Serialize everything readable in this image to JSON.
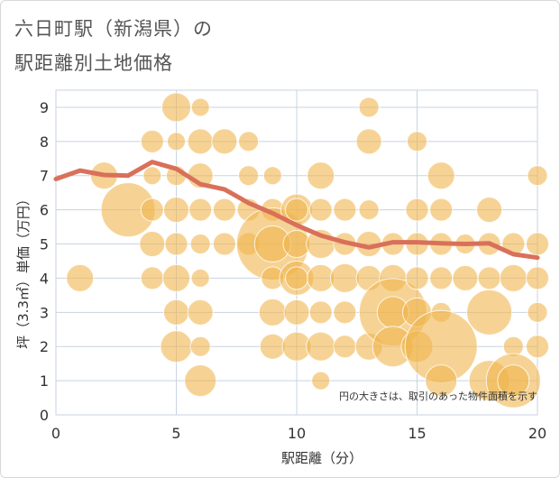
{
  "chart_data": {
    "type": "scatter",
    "title_line1": "六日町駅（新潟県）の",
    "title_line2": "駅距離別土地価格",
    "xlabel": "駅距離（分）",
    "ylabel": "坪（3.3㎡）単価（万円）",
    "xlim": [
      0,
      20
    ],
    "ylim": [
      0,
      9.5
    ],
    "x_ticks": [
      "0",
      "5",
      "10",
      "15",
      "20"
    ],
    "y_ticks": [
      "0",
      "1",
      "2",
      "3",
      "4",
      "5",
      "6",
      "7",
      "8",
      "9"
    ],
    "note": "円の大きさは、取引のあった物件面積を示す",
    "colors": {
      "bubble": "#f0b54e",
      "line": "#d9705a",
      "grid": "#c9d3e0"
    },
    "trend_line": {
      "x": [
        0,
        1,
        2,
        3,
        4,
        5,
        6,
        7,
        8,
        9,
        10,
        11,
        12,
        13,
        14,
        15,
        16,
        17,
        18,
        19,
        20
      ],
      "y": [
        6.9,
        7.15,
        7.02,
        7.0,
        7.4,
        7.2,
        6.75,
        6.6,
        6.2,
        5.9,
        5.55,
        5.25,
        5.05,
        4.9,
        5.05,
        5.05,
        5.02,
        5.0,
        5.02,
        4.7,
        4.6
      ]
    },
    "points": [
      {
        "x": 1,
        "y": 4,
        "s": 2
      },
      {
        "x": 2,
        "y": 7,
        "s": 2
      },
      {
        "x": 3,
        "y": 6,
        "s": 5
      },
      {
        "x": 4,
        "y": 8,
        "s": 1.5
      },
      {
        "x": 4,
        "y": 7,
        "s": 1
      },
      {
        "x": 4,
        "y": 6,
        "s": 1.5
      },
      {
        "x": 4,
        "y": 5,
        "s": 1.8
      },
      {
        "x": 4,
        "y": 4,
        "s": 1.5
      },
      {
        "x": 5,
        "y": 9,
        "s": 2.2
      },
      {
        "x": 5,
        "y": 8,
        "s": 1
      },
      {
        "x": 5,
        "y": 7,
        "s": 1.2
      },
      {
        "x": 5,
        "y": 6,
        "s": 1.8
      },
      {
        "x": 5,
        "y": 5,
        "s": 1.5
      },
      {
        "x": 5,
        "y": 4,
        "s": 2
      },
      {
        "x": 5,
        "y": 3,
        "s": 1.8
      },
      {
        "x": 5,
        "y": 2,
        "s": 2.5
      },
      {
        "x": 6,
        "y": 9,
        "s": 1
      },
      {
        "x": 6,
        "y": 8,
        "s": 1.8
      },
      {
        "x": 6,
        "y": 7,
        "s": 1.8
      },
      {
        "x": 6,
        "y": 6,
        "s": 1.5
      },
      {
        "x": 6,
        "y": 5,
        "s": 1.2
      },
      {
        "x": 6,
        "y": 4,
        "s": 1
      },
      {
        "x": 6,
        "y": 3,
        "s": 1.8
      },
      {
        "x": 6,
        "y": 2,
        "s": 1.2
      },
      {
        "x": 6,
        "y": 1,
        "s": 2.5
      },
      {
        "x": 7,
        "y": 8,
        "s": 1.8
      },
      {
        "x": 7,
        "y": 6,
        "s": 1.5
      },
      {
        "x": 7,
        "y": 5,
        "s": 1.5
      },
      {
        "x": 8,
        "y": 8,
        "s": 1.2
      },
      {
        "x": 8,
        "y": 7,
        "s": 1.2
      },
      {
        "x": 8,
        "y": 6,
        "s": 1.5
      },
      {
        "x": 8,
        "y": 5,
        "s": 1.5
      },
      {
        "x": 9,
        "y": 7,
        "s": 1
      },
      {
        "x": 9,
        "y": 6,
        "s": 1.5
      },
      {
        "x": 9,
        "y": 5,
        "s": 7
      },
      {
        "x": 9,
        "y": 5,
        "s": 3
      },
      {
        "x": 9,
        "y": 4,
        "s": 1.5
      },
      {
        "x": 9,
        "y": 3,
        "s": 2
      },
      {
        "x": 9,
        "y": 2,
        "s": 1.8
      },
      {
        "x": 10,
        "y": 6,
        "s": 2.5
      },
      {
        "x": 10,
        "y": 5,
        "s": 2
      },
      {
        "x": 10,
        "y": 4,
        "s": 2.8
      },
      {
        "x": 10,
        "y": 4,
        "s": 1.5
      },
      {
        "x": 10,
        "y": 3,
        "s": 1.8
      },
      {
        "x": 10,
        "y": 2,
        "s": 2.2
      },
      {
        "x": 10,
        "y": 6,
        "s": 1.5
      },
      {
        "x": 11,
        "y": 7,
        "s": 2
      },
      {
        "x": 11,
        "y": 6,
        "s": 1.5
      },
      {
        "x": 11,
        "y": 5,
        "s": 2.2
      },
      {
        "x": 11,
        "y": 4,
        "s": 2
      },
      {
        "x": 11,
        "y": 3,
        "s": 1.5
      },
      {
        "x": 11,
        "y": 2,
        "s": 2.2
      },
      {
        "x": 11,
        "y": 1,
        "s": 1
      },
      {
        "x": 12,
        "y": 6,
        "s": 1.5
      },
      {
        "x": 12,
        "y": 5,
        "s": 1.5
      },
      {
        "x": 12,
        "y": 4,
        "s": 2.2
      },
      {
        "x": 12,
        "y": 3,
        "s": 1.5
      },
      {
        "x": 12,
        "y": 2,
        "s": 1.5
      },
      {
        "x": 13,
        "y": 9,
        "s": 1.2
      },
      {
        "x": 13,
        "y": 8,
        "s": 1.8
      },
      {
        "x": 13,
        "y": 6,
        "s": 1.2
      },
      {
        "x": 13,
        "y": 5,
        "s": 1.8
      },
      {
        "x": 13,
        "y": 4,
        "s": 1.8
      },
      {
        "x": 13,
        "y": 2,
        "s": 2
      },
      {
        "x": 14,
        "y": 5,
        "s": 1.5
      },
      {
        "x": 14,
        "y": 4,
        "s": 2
      },
      {
        "x": 14,
        "y": 3,
        "s": 6.5
      },
      {
        "x": 14,
        "y": 3,
        "s": 2.5
      },
      {
        "x": 14,
        "y": 2,
        "s": 3.5
      },
      {
        "x": 15,
        "y": 8,
        "s": 1.2
      },
      {
        "x": 15,
        "y": 6,
        "s": 1.5
      },
      {
        "x": 15,
        "y": 5,
        "s": 1.5
      },
      {
        "x": 15,
        "y": 4,
        "s": 1.5
      },
      {
        "x": 15,
        "y": 3,
        "s": 2.2
      },
      {
        "x": 15,
        "y": 2,
        "s": 2.5
      },
      {
        "x": 16,
        "y": 7,
        "s": 2
      },
      {
        "x": 16,
        "y": 6,
        "s": 1.5
      },
      {
        "x": 16,
        "y": 5,
        "s": 1.5
      },
      {
        "x": 16,
        "y": 4,
        "s": 1.5
      },
      {
        "x": 16,
        "y": 3,
        "s": 1.2
      },
      {
        "x": 16,
        "y": 2,
        "s": 7
      },
      {
        "x": 16,
        "y": 1,
        "s": 2.5
      },
      {
        "x": 17,
        "y": 4,
        "s": 1.8
      },
      {
        "x": 17,
        "y": 5,
        "s": 1.2
      },
      {
        "x": 18,
        "y": 6,
        "s": 1.8
      },
      {
        "x": 18,
        "y": 5,
        "s": 1.5
      },
      {
        "x": 18,
        "y": 4,
        "s": 1.5
      },
      {
        "x": 18,
        "y": 3,
        "s": 4
      },
      {
        "x": 18,
        "y": 1,
        "s": 3.5
      },
      {
        "x": 19,
        "y": 5,
        "s": 1.5
      },
      {
        "x": 19,
        "y": 4,
        "s": 2
      },
      {
        "x": 19,
        "y": 2,
        "s": 1.2
      },
      {
        "x": 19,
        "y": 1,
        "s": 5
      },
      {
        "x": 19,
        "y": 1,
        "s": 2.5
      },
      {
        "x": 20,
        "y": 7,
        "s": 1.2
      },
      {
        "x": 20,
        "y": 5,
        "s": 1.5
      },
      {
        "x": 20,
        "y": 4,
        "s": 1.5
      },
      {
        "x": 20,
        "y": 3,
        "s": 1.2
      },
      {
        "x": 20,
        "y": 2,
        "s": 1.5
      }
    ]
  }
}
